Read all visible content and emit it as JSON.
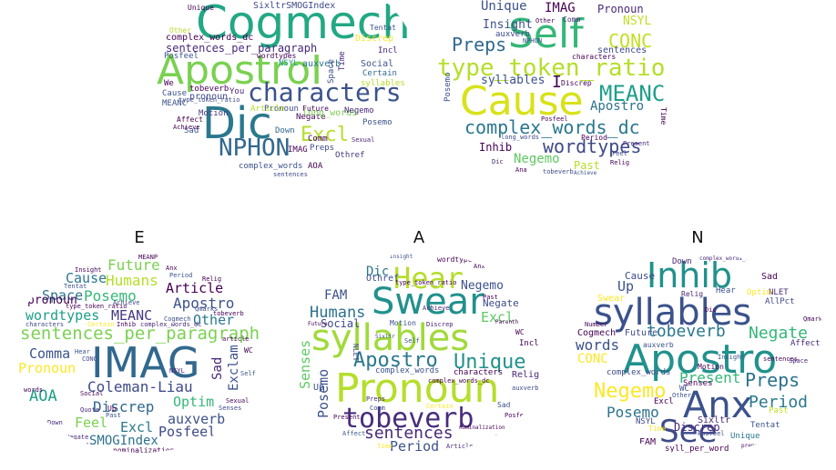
{
  "panels": {
    "p1": {
      "title": "",
      "words": [
        "Cogmech",
        "ApostroI",
        "Dic",
        "characters",
        "NPHON",
        "Excl",
        "sentences_per_paragraph",
        "SixltrSMOGIndex",
        "complex_words_dc",
        "NSYL",
        "auxverb",
        "Discrep",
        "Social",
        "Negate",
        "Incl",
        "Posfeel",
        "pronoun",
        "wordtypes",
        "syllables",
        "Certain",
        "Cause",
        "tobeverb",
        "You",
        "Pronoun",
        "Motion",
        "long_words",
        "Posemo",
        "Affect",
        "Article",
        "Future",
        "Negemo",
        "Sad",
        "Down",
        "IMAG",
        "Preps",
        "Othref",
        "complex_words",
        "AOA",
        "sentences",
        "Tentat",
        "Unique",
        "Space",
        "Time",
        "Comm",
        "MEANC",
        "We",
        "Other",
        "type_token_ratio",
        "Achieve",
        "Sexual"
      ]
    },
    "p2": {
      "title": "",
      "words": [
        "Self",
        "Cause",
        "type_token_ratio",
        "MEANC",
        "Preps",
        "CONC",
        "complex_words_dc",
        "wordtypes",
        "Unique",
        "IMAG",
        "Pronoun",
        "NSYL",
        "Insight",
        "auxverb",
        "syllables",
        "I",
        "Apostro",
        "Inhib",
        "Negemo",
        "Past",
        "sentences",
        "characters",
        "Posemo",
        "Discrep",
        "Comm",
        "long_words",
        "Period",
        "Posfeel",
        "NPHON",
        "Dic",
        "Relig",
        "tobeverb",
        "Ana",
        "Achieve",
        "Time",
        "Present",
        "Feel",
        "Other"
      ]
    },
    "p3": {
      "title": "E",
      "words": [
        "IMAG",
        "sentences_per_paragraph",
        "Coleman-Liau",
        "Posemo",
        "Future",
        "Humans",
        "Cause",
        "Article",
        "Apostro",
        "Space",
        "wordtypes",
        "MEANC",
        "Other",
        "pronoun",
        "Pronoun",
        "Comma",
        "Sad",
        "Exclam",
        "AOA",
        "Optim",
        "Discrep",
        "auxverb",
        "Feel",
        "Excl",
        "Posfeel",
        "SMOGIndex",
        "Insight",
        "type_token_ratio",
        "characters",
        "complex_words_dc",
        "Certain",
        "Inhib",
        "Tentat",
        "article",
        "Self",
        "Social",
        "Quote",
        "Sexual",
        "Senses",
        "nominalization",
        "Past",
        "Up",
        "Down",
        "Achieve",
        "WC",
        "Period",
        "Anx",
        "Qmarks",
        "Relig",
        "NSYL",
        "words",
        "Hear",
        "CONC",
        "tobeverb",
        "MEANP",
        "Cogmech",
        "Negate",
        "Incl"
      ]
    },
    "p4": {
      "title": "A",
      "words": [
        "Swear",
        "syllables",
        "Pronoun",
        "tobeverb",
        "Hear",
        "Unique",
        "Apostro",
        "Humans",
        "sentences",
        "Senses",
        "Posemo",
        "FAM",
        "Dic",
        "Excl",
        "Negemo",
        "Negate",
        "Social",
        "Period",
        "characters",
        "complex_words",
        "Othref",
        "Relig",
        "Incl",
        "Up",
        "WC",
        "NLET",
        "wordtypes",
        "Insight",
        "Achieve",
        "Future",
        "Motion",
        "Past",
        "Discrep",
        "Sad",
        "Posfeel",
        "auxverb",
        "Article",
        "type_token_ratio",
        "Sixltr",
        "Certain",
        "Anx",
        "Time",
        "Present",
        "Affect",
        "Preps",
        "nominalization",
        "Comm",
        "Parenth",
        "Down",
        "Self",
        "complex_words_dc"
      ]
    },
    "p5": {
      "title": "N",
      "words": [
        "syllables",
        "Apostro",
        "Inhib",
        "Anx",
        "See",
        "Negemo",
        "tobeverb",
        "Negate",
        "Preps",
        "Period",
        "words",
        "Present",
        "Posemo",
        "Up",
        "Cause",
        "CONC",
        "Future",
        "Cogmech",
        "Discrep",
        "Sad",
        "NLET",
        "Senses",
        "Relig",
        "Hear",
        "Optim",
        "Swear",
        "Affect",
        "complex_words",
        "Tentat",
        "Excl",
        "Time",
        "Past",
        "WC",
        "Sixltr",
        "NSYL",
        "FAM",
        "Unique",
        "syll_per_word",
        "Down",
        "AllPct",
        "Motion",
        "Qmark",
        "Insight",
        "Number",
        "Space",
        "auxverb",
        "sentences",
        "Other",
        "Dic",
        "complex_words_dc",
        "preposition",
        "Posfeel"
      ]
    }
  }
}
